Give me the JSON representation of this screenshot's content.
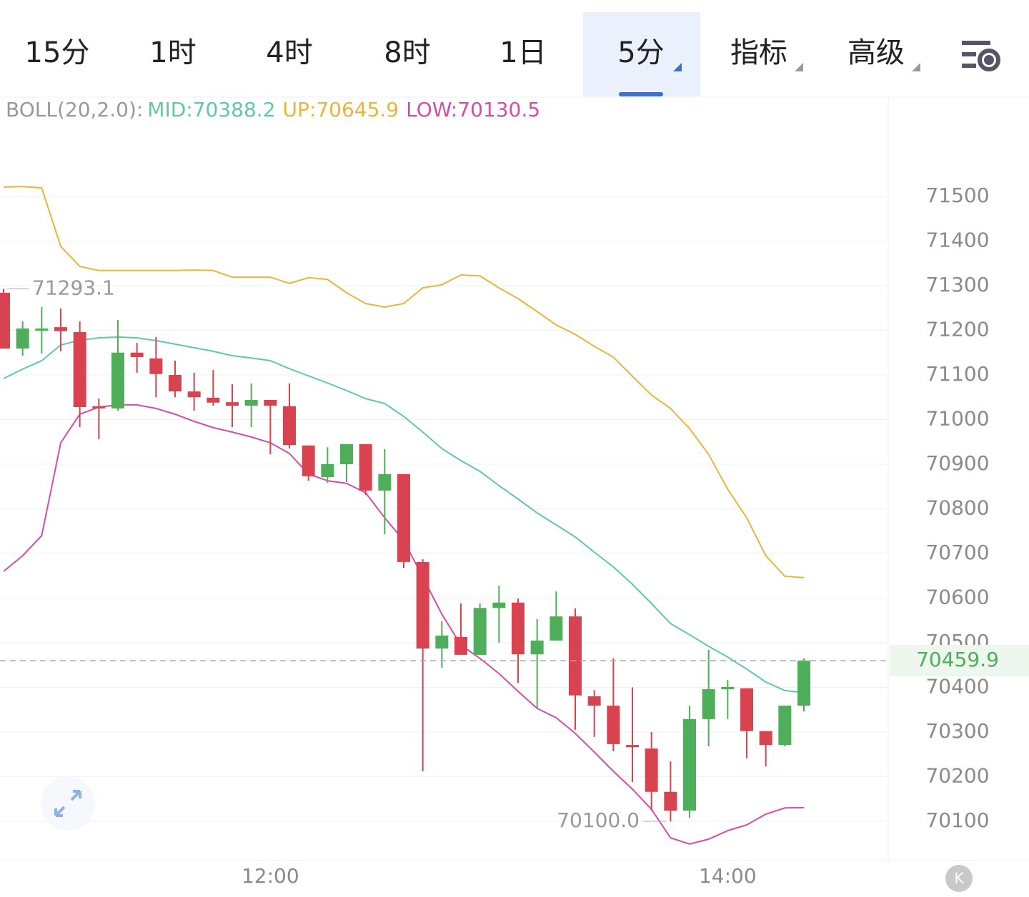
{
  "tabs": {
    "items": [
      "15分",
      "1时",
      "4时",
      "8时",
      "1日",
      "5分",
      "指标",
      "高级"
    ],
    "active": 5
  },
  "chart_data": {
    "type": "candlestick",
    "indicator": "BOLL(20,2.0):",
    "categories": [
      null,
      null,
      null,
      null,
      null,
      null,
      null,
      null,
      null,
      null,
      null,
      null,
      null,
      null,
      "12:00",
      null,
      null,
      null,
      null,
      null,
      null,
      null,
      null,
      null,
      null,
      null,
      null,
      null,
      null,
      null,
      null,
      null,
      null,
      null,
      null,
      null,
      null,
      null,
      "14:00",
      null,
      null,
      null,
      null
    ],
    "open": [
      71284,
      71159,
      71199,
      71207,
      71196,
      71030,
      71025,
      71150,
      71137,
      71100,
      71063,
      71049,
      71039,
      71031,
      71044,
      71030,
      70942,
      70871,
      70900,
      70945,
      70841,
      70878,
      70681,
      70487,
      70513,
      70473,
      70578,
      70590,
      70474,
      70505,
      70559,
      70380,
      70359,
      70271,
      70263,
      70166,
      70124,
      70329,
      70396,
      70398,
      70302,
      70271,
      70359
    ],
    "high": [
      71293.1,
      71220,
      71252,
      71249,
      71220,
      71047,
      71223,
      71172,
      71185,
      71132,
      71105,
      71111,
      71079,
      71081,
      71044,
      71081,
      70942,
      70938,
      70945,
      70945,
      70934,
      70878,
      70687,
      70548,
      70588,
      70588,
      70628,
      70599,
      70553,
      70615,
      70577,
      70394,
      70465,
      70400,
      70300,
      70234,
      70359,
      70484,
      70417,
      70398,
      70302,
      70359,
      70465
    ],
    "low": [
      71159,
      71143,
      71148,
      71153,
      70983,
      70956,
      71020,
      71105,
      71050,
      71050,
      71020,
      71031,
      70983,
      70983,
      70922,
      70935,
      70863,
      70858,
      70860,
      70831,
      70743,
      70668,
      70212,
      70444,
      70473,
      70473,
      70500,
      70410,
      70353,
      70505,
      70305,
      70289,
      70257,
      70188,
      70124,
      70100,
      70108,
      70268,
      70329,
      70241,
      70223,
      70268,
      70346
    ],
    "close": [
      71159,
      71204,
      71204,
      71198,
      71028,
      71025,
      71150,
      71140,
      71102,
      71063,
      71050,
      71038,
      71031,
      71044,
      71031,
      70943,
      70873,
      70900,
      70945,
      70841,
      70878,
      70681,
      70487,
      70516,
      70473,
      70578,
      70590,
      70474,
      70505,
      70559,
      70382,
      70359,
      70273,
      70266,
      70166,
      70124,
      70329,
      70396,
      70401,
      70302,
      70271,
      70359,
      70459.9
    ],
    "up_color": "#4fae5a",
    "down_color": "#d9434f",
    "series": [
      {
        "name": "MID:",
        "color": "#5ec9a9",
        "values": [
          71092,
          71113,
          71132,
          71167,
          71178,
          71183,
          71185,
          71183,
          71177,
          71169,
          71161,
          71153,
          71143,
          71138,
          71132,
          71114,
          71098,
          71082,
          71065,
          71047,
          71036,
          71007,
          70972,
          70935,
          70908,
          70884,
          70852,
          70822,
          70791,
          70764,
          70737,
          70703,
          70670,
          70631,
          70588,
          70543,
          70518,
          70492,
          70468,
          70441,
          70412,
          70393,
          70388.2
        ]
      },
      {
        "name": "UP:",
        "color": "#e8b63a",
        "values": [
          71521,
          71522,
          71519,
          71388,
          71343,
          71334,
          71334,
          71334,
          71334,
          71334,
          71335,
          71334,
          71319,
          71319,
          71319,
          71305,
          71318,
          71314,
          71284,
          71260,
          71252,
          71260,
          71295,
          71302,
          71324,
          71322,
          71295,
          71271,
          71242,
          71212,
          71191,
          71164,
          71140,
          71097,
          71055,
          71025,
          70980,
          70922,
          70844,
          70780,
          70695,
          70649,
          70645.9
        ]
      },
      {
        "name": "LOW:",
        "color": "#d24ea9",
        "values": [
          70660,
          70695,
          70740,
          70948,
          71012,
          71028,
          71033,
          71033,
          71025,
          71012,
          70996,
          70982,
          70972,
          70961,
          70948,
          70924,
          70878,
          70863,
          70857,
          70836,
          70780,
          70729,
          70647,
          70564,
          70495,
          70465,
          70431,
          70391,
          70353,
          70332,
          70297,
          70255,
          70212,
          70172,
          70127,
          70063,
          70049,
          70060,
          70079,
          70092,
          70116,
          70130,
          70130.5
        ]
      }
    ],
    "ylim": [
      70012,
      71716
    ],
    "yticks": [
      70100,
      70200,
      70300,
      70400,
      70500,
      70600,
      70700,
      70800,
      70900,
      71000,
      71100,
      71200,
      71300,
      71400,
      71500
    ],
    "grid": true,
    "last_price": 70459.9,
    "max_label": 71293.1,
    "min_label": {
      "value": 70100,
      "label": "70100.0"
    }
  }
}
